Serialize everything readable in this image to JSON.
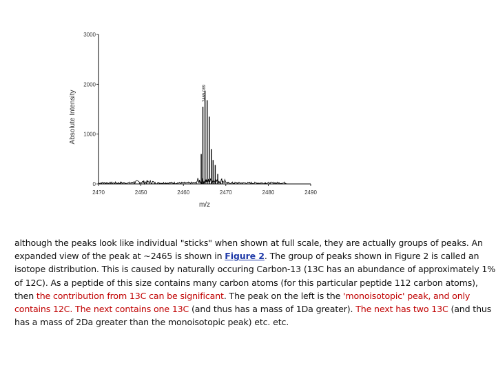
{
  "chart_data": {
    "type": "line",
    "xlabel": "m/z",
    "ylabel": "Absolute Intensity",
    "xlim": [
      2440,
      2490
    ],
    "ylim": [
      0,
      3000
    ],
    "x_ticks": [
      2440,
      2450,
      2460,
      2470,
      2480,
      2490
    ],
    "x_tick_labels": [
      "24?0",
      "2450",
      "2460",
      "2470",
      "2480",
      "2490"
    ],
    "y_ticks": [
      0,
      1000,
      2000,
      3000
    ],
    "y_tick_labels": [
      "0",
      "1000",
      "2000",
      "3000"
    ],
    "peak_annotation": "2465.089",
    "peaks": [
      {
        "x": 2464.2,
        "y": 600
      },
      {
        "x": 2464.6,
        "y": 1550
      },
      {
        "x": 2465.1,
        "y": 1870
      },
      {
        "x": 2465.6,
        "y": 1680
      },
      {
        "x": 2466.1,
        "y": 1350
      },
      {
        "x": 2466.6,
        "y": 700
      },
      {
        "x": 2467.0,
        "y": 480
      },
      {
        "x": 2467.5,
        "y": 380
      },
      {
        "x": 2468.1,
        "y": 200
      }
    ]
  },
  "paragraph": {
    "s1": "although the peaks look like individual \"sticks\" when shown at full scale, they are actually groups of peaks. An expanded view of the peak at ~2465 is shown in ",
    "link": "Figure 2",
    "s2": ". The group of peaks shown in Figure 2 is called an isotope distribution. This is caused by naturally occuring Carbon-13 (13C has an abundance of approximately 1% of 12C). As a peptide of this size contains many carbon atoms (for this particular peptide 112 carbon atoms), then ",
    "r1": "the contribution from 13C can be significant",
    "s3": ". The peak on the left is the ",
    "r2": "'monoisotopic' peak, and only contains 12C. The next contains one 13C",
    "s4": " (and thus has a mass of 1Da greater). ",
    "r3": "The next has two 13C",
    "s5": " (and thus has a mass of 2Da greater than the monoisotopic peak) etc. etc."
  }
}
